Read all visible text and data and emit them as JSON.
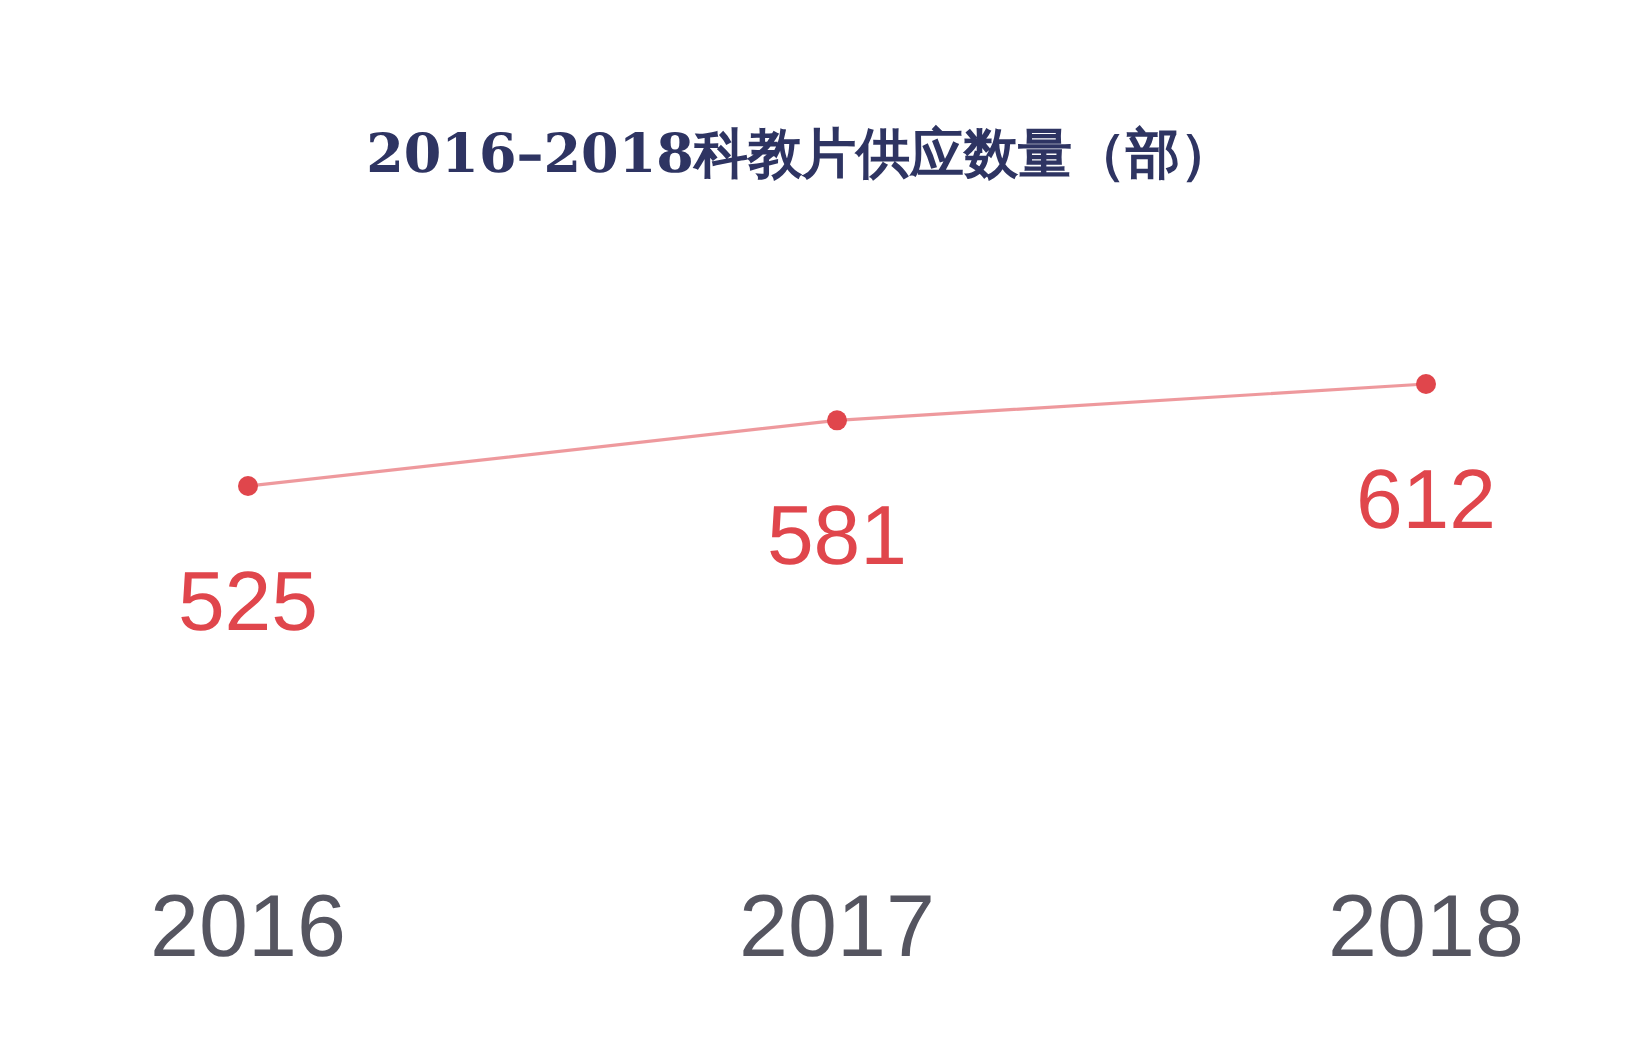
{
  "chart_data": {
    "type": "line",
    "title": "2016–2018科教片供应数量（部）",
    "categories": [
      "2016",
      "2017",
      "2018"
    ],
    "series": [
      {
        "color": "#e0464c",
        "values": [
          525,
          581,
          612
        ]
      }
    ],
    "data_labels": true,
    "marker": "circle"
  }
}
